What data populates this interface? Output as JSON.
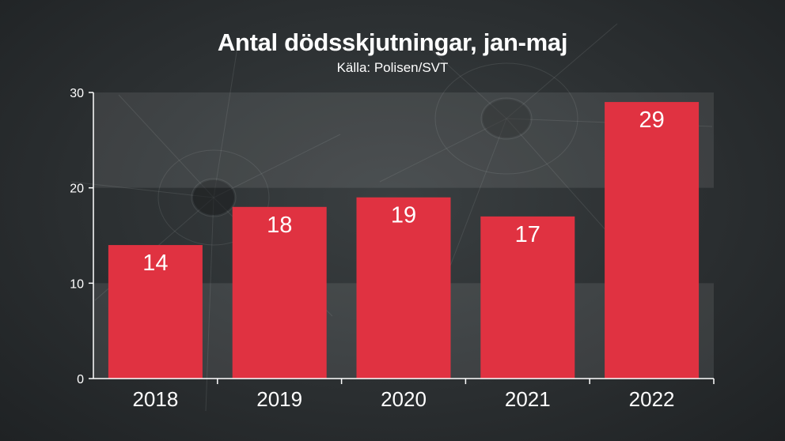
{
  "chart_data": {
    "type": "bar",
    "title": "Antal dödsskjutningar, jan-maj",
    "subtitle": "Källa: Polisen/SVT",
    "categories": [
      "2018",
      "2019",
      "2020",
      "2021",
      "2022"
    ],
    "values": [
      14,
      18,
      19,
      17,
      29
    ],
    "data_labels": [
      "14",
      "18",
      "19",
      "17",
      "29"
    ],
    "yticks": [
      "0",
      "10",
      "20",
      "30"
    ],
    "ylim": [
      0,
      30
    ],
    "grid": "alternating bands",
    "legend": "none",
    "colors": {
      "bar": "#e03241",
      "axis": "#ffffff",
      "band": "#ffffff",
      "background": "#2b2f31"
    }
  }
}
